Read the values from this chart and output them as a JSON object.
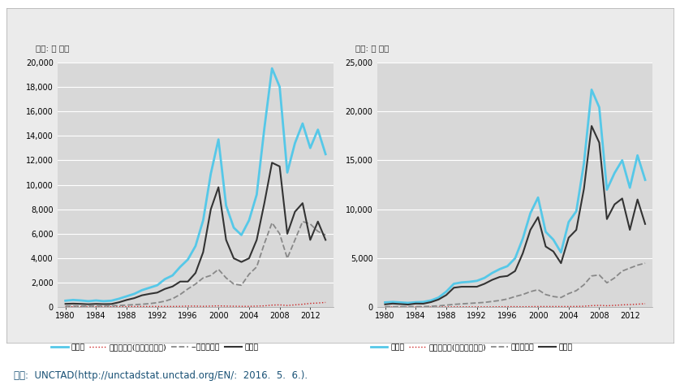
{
  "years": [
    1980,
    1981,
    1982,
    1983,
    1984,
    1985,
    1986,
    1987,
    1988,
    1989,
    1990,
    1991,
    1992,
    1993,
    1994,
    1995,
    1996,
    1997,
    1998,
    1999,
    2000,
    2001,
    2002,
    2003,
    2004,
    2005,
    2006,
    2007,
    2008,
    2009,
    2010,
    2011,
    2012,
    2013,
    2014
  ],
  "left": {
    "title": "단위: 억 달러",
    "ylim": [
      0,
      20000
    ],
    "yticks": [
      0,
      2000,
      4000,
      6000,
      8000,
      10000,
      12000,
      14000,
      16000,
      18000,
      20000
    ],
    "series": {
      "전세계": [
        540,
        600,
        560,
        500,
        560,
        500,
        540,
        700,
        900,
        1100,
        1400,
        1600,
        1800,
        2300,
        2600,
        3300,
        3900,
        5000,
        7100,
        10900,
        13700,
        8300,
        6500,
        5900,
        7100,
        9200,
        14600,
        19500,
        18000,
        11000,
        13400,
        15000,
        13000,
        14500,
        12500
      ],
      "체제전환국(동아시아제외)": [
        50,
        50,
        50,
        50,
        50,
        50,
        50,
        50,
        60,
        70,
        70,
        70,
        70,
        70,
        70,
        80,
        100,
        100,
        80,
        100,
        120,
        100,
        90,
        80,
        80,
        100,
        120,
        180,
        200,
        150,
        200,
        250,
        320,
        350,
        400
      ],
      "개발도상국": [
        100,
        110,
        100,
        100,
        110,
        110,
        120,
        150,
        180,
        220,
        250,
        300,
        380,
        500,
        700,
        1050,
        1500,
        1900,
        2400,
        2600,
        3100,
        2400,
        1900,
        1800,
        2700,
        3300,
        5200,
        6900,
        6000,
        4000,
        5500,
        7000,
        6800,
        6200,
        5900
      ],
      "선진국": [
        280,
        300,
        280,
        250,
        280,
        260,
        270,
        410,
        600,
        750,
        980,
        1100,
        1200,
        1500,
        1700,
        2100,
        2100,
        2800,
        4500,
        8000,
        9800,
        5500,
        4000,
        3700,
        4000,
        5500,
        8500,
        11800,
        11500,
        6000,
        7800,
        8500,
        5500,
        7000,
        5500
      ]
    }
  },
  "right": {
    "title": "단위: 억 달러",
    "ylim": [
      0,
      25000
    ],
    "yticks": [
      0,
      5000,
      10000,
      15000,
      20000,
      25000
    ],
    "series": {
      "전세계": [
        500,
        550,
        500,
        450,
        520,
        550,
        700,
        1000,
        1600,
        2400,
        2540,
        2600,
        2700,
        3000,
        3500,
        3900,
        4200,
        5000,
        7000,
        9600,
        11200,
        7700,
        6900,
        5600,
        8700,
        9800,
        14700,
        22200,
        20400,
        12000,
        13700,
        15000,
        12200,
        15500,
        13000
      ],
      "체제전환국(동아시아제외)": [
        30,
        30,
        30,
        30,
        30,
        30,
        30,
        30,
        40,
        50,
        50,
        50,
        50,
        50,
        50,
        60,
        70,
        70,
        60,
        70,
        80,
        80,
        80,
        80,
        80,
        90,
        110,
        170,
        200,
        160,
        200,
        250,
        280,
        320,
        370
      ],
      "개발도상국": [
        50,
        60,
        60,
        60,
        70,
        80,
        100,
        150,
        220,
        300,
        350,
        400,
        450,
        500,
        600,
        700,
        850,
        1100,
        1300,
        1600,
        1800,
        1300,
        1100,
        1000,
        1400,
        1700,
        2300,
        3200,
        3300,
        2500,
        3000,
        3700,
        4000,
        4300,
        4500
      ],
      "선진국": [
        300,
        380,
        330,
        280,
        380,
        370,
        530,
        800,
        1250,
        2000,
        2100,
        2100,
        2100,
        2400,
        2800,
        3100,
        3200,
        3700,
        5500,
        7900,
        9200,
        6200,
        5700,
        4500,
        7100,
        7900,
        12100,
        18500,
        16800,
        9000,
        10500,
        11100,
        7900,
        11000,
        8500
      ]
    }
  },
  "colors": {
    "전세계": "#55C8E8",
    "체제전환국(동아시아제외)": "#CC2222",
    "개발도상국": "#888888",
    "선진국": "#333333"
  },
  "linestyles": {
    "전세계": "-",
    "체제전환국(동아시아제외)": ":",
    "개발도상국": "--",
    "선진국": "-"
  },
  "linewidths": {
    "전세계": 2.0,
    "체제전환국(동아시아제외)": 1.0,
    "개발도상국": 1.3,
    "선진국": 1.5
  },
  "xticks": [
    1980,
    1984,
    1988,
    1992,
    1996,
    2000,
    2004,
    2008,
    2012
  ],
  "bg_color": "#D8D8D8",
  "panel_bg": "#EBEBEB",
  "outer_bg": "#FFFFFF",
  "source_text": "자료:  UNCTAD(http://unctadstat.unctad.org/EN/:  2016.  5.  6.)."
}
